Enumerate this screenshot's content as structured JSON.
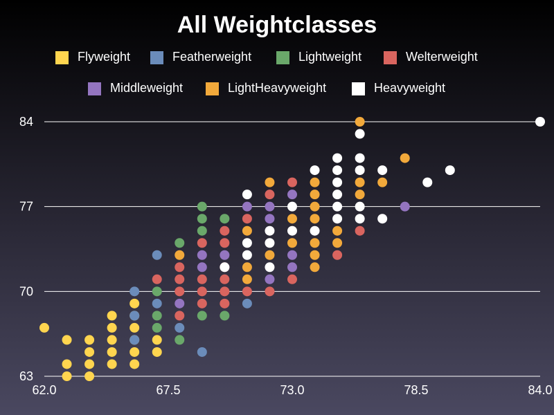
{
  "chart_data": {
    "type": "scatter",
    "title": "All Weightclasses",
    "xlabel": "",
    "ylabel": "",
    "xlim": [
      62.0,
      84.0
    ],
    "ylim": [
      63,
      84
    ],
    "x_ticks": [
      "62.0",
      "67.5",
      "73.0",
      "78.5",
      "84.0"
    ],
    "y_ticks": [
      "63",
      "70",
      "77",
      "84"
    ],
    "grid": "horizontal",
    "legend_position": "top",
    "series": [
      {
        "name": "Flyweight",
        "color": "#ffd54f",
        "points": [
          [
            62,
            67
          ],
          [
            63,
            66
          ],
          [
            63,
            64
          ],
          [
            63,
            63
          ],
          [
            64,
            66
          ],
          [
            64,
            65
          ],
          [
            64,
            64
          ],
          [
            64,
            63
          ],
          [
            65,
            68
          ],
          [
            65,
            67
          ],
          [
            65,
            66
          ],
          [
            65,
            65
          ],
          [
            65,
            64
          ],
          [
            66,
            69
          ],
          [
            66,
            68
          ],
          [
            66,
            67
          ],
          [
            66,
            66
          ],
          [
            66,
            65
          ],
          [
            66,
            64
          ],
          [
            67,
            66
          ],
          [
            67,
            65
          ]
        ]
      },
      {
        "name": "Featherweight",
        "color": "#6b8cba",
        "points": [
          [
            66,
            70
          ],
          [
            66,
            68
          ],
          [
            66,
            66
          ],
          [
            67,
            73
          ],
          [
            67,
            69
          ],
          [
            68,
            67
          ],
          [
            69,
            65
          ],
          [
            71,
            69
          ]
        ]
      },
      {
        "name": "Lightweight",
        "color": "#6aa86a",
        "points": [
          [
            67,
            70
          ],
          [
            67,
            68
          ],
          [
            67,
            67
          ],
          [
            68,
            74
          ],
          [
            68,
            66
          ],
          [
            69,
            77
          ],
          [
            69,
            76
          ],
          [
            69,
            75
          ],
          [
            69,
            68
          ],
          [
            70,
            76
          ],
          [
            70,
            68
          ]
        ]
      },
      {
        "name": "Welterweight",
        "color": "#d9655f",
        "points": [
          [
            67,
            71
          ],
          [
            68,
            72
          ],
          [
            68,
            71
          ],
          [
            68,
            70
          ],
          [
            68,
            68
          ],
          [
            69,
            74
          ],
          [
            69,
            71
          ],
          [
            69,
            70
          ],
          [
            69,
            69
          ],
          [
            70,
            75
          ],
          [
            70,
            74
          ],
          [
            70,
            72
          ],
          [
            70,
            71
          ],
          [
            70,
            70
          ],
          [
            70,
            69
          ],
          [
            71,
            76
          ],
          [
            71,
            70
          ],
          [
            72,
            78
          ],
          [
            72,
            70
          ],
          [
            73,
            79
          ],
          [
            73,
            71
          ],
          [
            75,
            73
          ],
          [
            76,
            75
          ]
        ]
      },
      {
        "name": "Middleweight",
        "color": "#9475c0",
        "points": [
          [
            68,
            69
          ],
          [
            69,
            73
          ],
          [
            69,
            72
          ],
          [
            70,
            73
          ],
          [
            71,
            77
          ],
          [
            72,
            77
          ],
          [
            72,
            76
          ],
          [
            72,
            71
          ],
          [
            73,
            78
          ],
          [
            73,
            73
          ],
          [
            73,
            72
          ],
          [
            78,
            77
          ]
        ]
      },
      {
        "name": "LightHeavyweight",
        "color": "#f2a93b",
        "points": [
          [
            68,
            73
          ],
          [
            71,
            75
          ],
          [
            71,
            72
          ],
          [
            71,
            71
          ],
          [
            72,
            79
          ],
          [
            72,
            73
          ],
          [
            73,
            76
          ],
          [
            73,
            74
          ],
          [
            74,
            79
          ],
          [
            74,
            78
          ],
          [
            74,
            77
          ],
          [
            74,
            76
          ],
          [
            74,
            74
          ],
          [
            74,
            73
          ],
          [
            74,
            72
          ],
          [
            75,
            75
          ],
          [
            75,
            74
          ],
          [
            76,
            84
          ],
          [
            76,
            79
          ],
          [
            76,
            78
          ],
          [
            77,
            79
          ],
          [
            78,
            81
          ]
        ]
      },
      {
        "name": "Heavyweight",
        "color": "#ffffff",
        "points": [
          [
            70,
            72
          ],
          [
            71,
            78
          ],
          [
            71,
            74
          ],
          [
            71,
            73
          ],
          [
            72,
            75
          ],
          [
            72,
            74
          ],
          [
            72,
            72
          ],
          [
            73,
            77
          ],
          [
            73,
            75
          ],
          [
            74,
            80
          ],
          [
            74,
            75
          ],
          [
            75,
            81
          ],
          [
            75,
            80
          ],
          [
            75,
            79
          ],
          [
            75,
            78
          ],
          [
            75,
            77
          ],
          [
            75,
            76
          ],
          [
            76,
            83
          ],
          [
            76,
            81
          ],
          [
            76,
            80
          ],
          [
            76,
            77
          ],
          [
            76,
            76
          ],
          [
            77,
            80
          ],
          [
            77,
            76
          ],
          [
            79,
            79
          ],
          [
            80,
            80
          ],
          [
            84,
            84
          ]
        ]
      }
    ]
  }
}
